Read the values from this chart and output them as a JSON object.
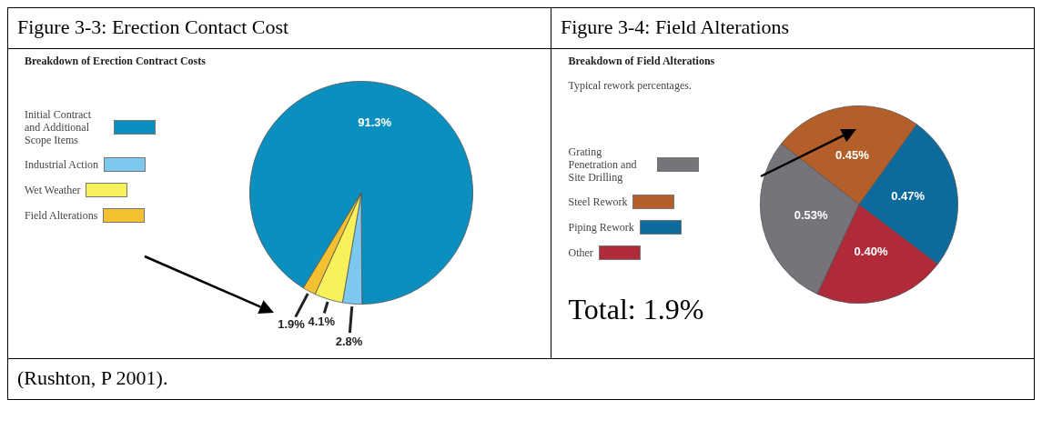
{
  "chart_data": [
    {
      "type": "pie",
      "title": "Figure 3-3: Erection Contact Cost",
      "subtitle": "Breakdown of Erection Contract Costs",
      "categories": [
        "Initial Contract and Additional Scope Items",
        "Industrial Action",
        "Wet Weather",
        "Field Alterations"
      ],
      "values": [
        91.3,
        2.8,
        4.1,
        1.9
      ],
      "colors": [
        "#0a8fbf",
        "#7cc8ee",
        "#f7f25a",
        "#f2c030"
      ],
      "value_labels": [
        "91.3%",
        "2.8%",
        "4.1%",
        "1.9%"
      ],
      "legend": "left",
      "annotations": [
        "(Rushton, P 2001)."
      ]
    },
    {
      "type": "pie",
      "title": "Figure 3-4: Field Alterations",
      "subtitle": "Breakdown of Field Alterations",
      "categories": [
        "Grating Penetration and Site Drilling",
        "Steel Rework",
        "Piping Rework",
        "Other"
      ],
      "values": [
        0.53,
        0.45,
        0.47,
        0.4
      ],
      "colors": [
        "#77737a",
        "#b45f2a",
        "#0d6a9c",
        "#b02a3a"
      ],
      "value_labels": [
        "0.53%",
        "0.45%",
        "0.47%",
        "0.40%"
      ],
      "legend": "left",
      "annotations": [
        "Typical rework percentages.",
        "Total: 1.9%"
      ]
    }
  ]
}
